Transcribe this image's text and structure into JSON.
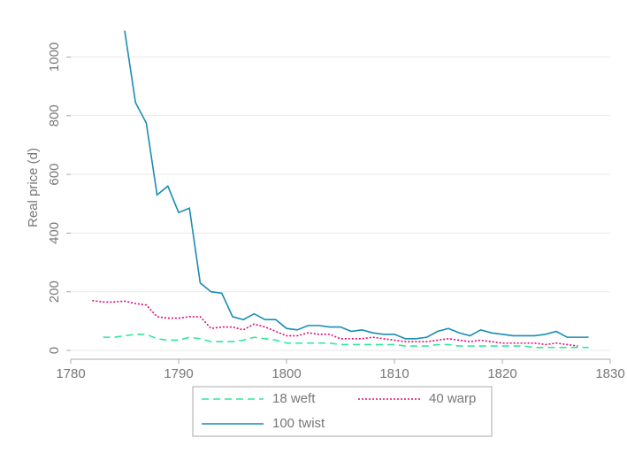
{
  "chart_data": {
    "type": "line",
    "ylabel": "Real price (d)",
    "xlim": [
      1780,
      1830
    ],
    "xticks": [
      1780,
      1790,
      1800,
      1810,
      1820,
      1830
    ],
    "ylim": [
      -30,
      1140
    ],
    "yticks": [
      0,
      200,
      400,
      600,
      800,
      1000
    ],
    "grid": true,
    "legend": "bottom",
    "series": [
      {
        "name": "18 weft",
        "color": "#2ee89b",
        "dash": "dashed",
        "x": [
          1783,
          1784,
          1785,
          1786,
          1787,
          1788,
          1789,
          1790,
          1791,
          1792,
          1793,
          1794,
          1795,
          1796,
          1797,
          1798,
          1799,
          1800,
          1801,
          1802,
          1803,
          1804,
          1805,
          1806,
          1807,
          1808,
          1809,
          1810,
          1811,
          1812,
          1813,
          1814,
          1815,
          1816,
          1817,
          1818,
          1819,
          1820,
          1821,
          1822,
          1823,
          1824,
          1825,
          1826,
          1827,
          1828
        ],
        "values": [
          45,
          45,
          50,
          55,
          55,
          40,
          35,
          35,
          45,
          40,
          30,
          30,
          30,
          35,
          45,
          40,
          35,
          25,
          25,
          25,
          25,
          25,
          20,
          20,
          20,
          20,
          20,
          20,
          15,
          15,
          15,
          20,
          20,
          15,
          15,
          15,
          15,
          15,
          15,
          15,
          10,
          10,
          10,
          10,
          10,
          10
        ]
      },
      {
        "name": "40 warp",
        "color": "#e0087a",
        "dash": "dotted",
        "x": [
          1782,
          1783,
          1784,
          1785,
          1786,
          1787,
          1788,
          1789,
          1790,
          1791,
          1792,
          1793,
          1794,
          1795,
          1796,
          1797,
          1798,
          1799,
          1800,
          1801,
          1802,
          1803,
          1804,
          1805,
          1806,
          1807,
          1808,
          1809,
          1810,
          1811,
          1812,
          1813,
          1814,
          1815,
          1816,
          1817,
          1818,
          1819,
          1820,
          1821,
          1822,
          1823,
          1824,
          1825,
          1826,
          1827
        ],
        "values": [
          170,
          165,
          165,
          168,
          160,
          155,
          115,
          110,
          110,
          115,
          115,
          75,
          80,
          80,
          70,
          90,
          80,
          65,
          50,
          50,
          60,
          55,
          55,
          40,
          40,
          40,
          45,
          40,
          35,
          30,
          30,
          30,
          35,
          40,
          35,
          30,
          35,
          30,
          25,
          25,
          25,
          25,
          20,
          25,
          20,
          15
        ]
      },
      {
        "name": "100 twist",
        "color": "#1a8cb3",
        "dash": "solid",
        "x": [
          1785,
          1786,
          1787,
          1788,
          1789,
          1790,
          1791,
          1792,
          1793,
          1794,
          1795,
          1796,
          1797,
          1798,
          1799,
          1800,
          1801,
          1802,
          1803,
          1804,
          1805,
          1806,
          1807,
          1808,
          1809,
          1810,
          1811,
          1812,
          1813,
          1814,
          1815,
          1816,
          1817,
          1818,
          1819,
          1820,
          1821,
          1822,
          1823,
          1824,
          1825,
          1826,
          1827,
          1828
        ],
        "values": [
          1090,
          845,
          775,
          530,
          560,
          470,
          485,
          230,
          200,
          195,
          115,
          105,
          125,
          105,
          105,
          75,
          70,
          85,
          85,
          80,
          80,
          65,
          70,
          60,
          55,
          55,
          40,
          40,
          45,
          65,
          75,
          60,
          50,
          70,
          60,
          55,
          50,
          50,
          50,
          55,
          65,
          45,
          45,
          45
        ]
      }
    ]
  }
}
